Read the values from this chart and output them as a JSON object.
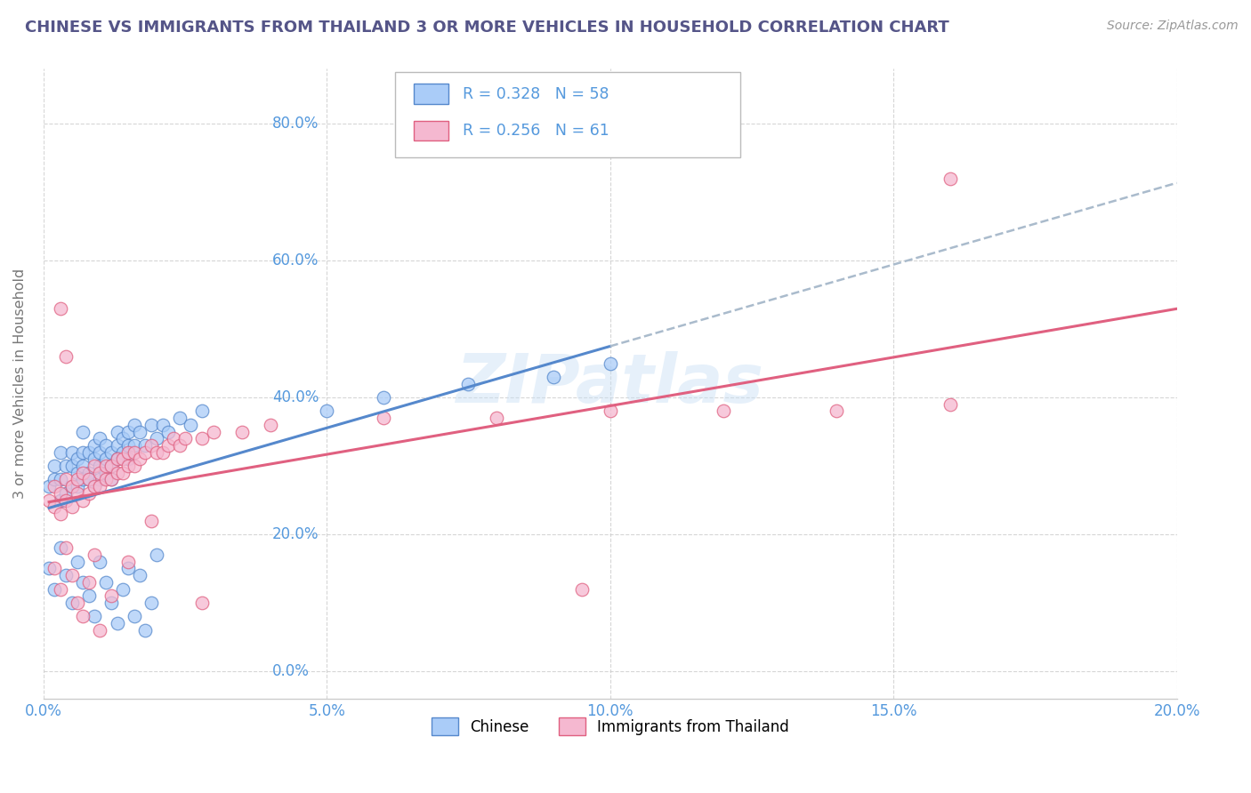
{
  "title": "CHINESE VS IMMIGRANTS FROM THAILAND 3 OR MORE VEHICLES IN HOUSEHOLD CORRELATION CHART",
  "source": "Source: ZipAtlas.com",
  "ylabel_label": "3 or more Vehicles in Household",
  "xlim": [
    0.0,
    0.2
  ],
  "ylim": [
    -0.04,
    0.88
  ],
  "legend_R": [
    0.328,
    0.256
  ],
  "legend_N": [
    58,
    61
  ],
  "color_chinese": "#aaccf8",
  "color_thailand": "#f5b8d0",
  "trendline_color_chinese": "#5588cc",
  "trendline_color_thailand": "#e06080",
  "watermark": "ZIPatlas",
  "title_color": "#555588",
  "tick_color": "#5599dd",
  "ylabel_color": "#777777",
  "chinese_x": [
    0.001,
    0.002,
    0.002,
    0.003,
    0.003,
    0.003,
    0.004,
    0.004,
    0.005,
    0.005,
    0.005,
    0.006,
    0.006,
    0.006,
    0.007,
    0.007,
    0.007,
    0.007,
    0.008,
    0.008,
    0.008,
    0.009,
    0.009,
    0.009,
    0.01,
    0.01,
    0.01,
    0.01,
    0.011,
    0.011,
    0.011,
    0.012,
    0.012,
    0.012,
    0.013,
    0.013,
    0.013,
    0.014,
    0.014,
    0.015,
    0.015,
    0.015,
    0.016,
    0.016,
    0.017,
    0.018,
    0.019,
    0.02,
    0.021,
    0.022,
    0.024,
    0.026,
    0.028,
    0.05,
    0.06,
    0.075,
    0.09,
    0.1
  ],
  "chinese_y": [
    0.27,
    0.3,
    0.28,
    0.32,
    0.28,
    0.25,
    0.3,
    0.26,
    0.3,
    0.27,
    0.32,
    0.29,
    0.31,
    0.27,
    0.32,
    0.28,
    0.3,
    0.35,
    0.29,
    0.32,
    0.28,
    0.31,
    0.27,
    0.33,
    0.3,
    0.28,
    0.32,
    0.34,
    0.31,
    0.29,
    0.33,
    0.3,
    0.32,
    0.28,
    0.33,
    0.31,
    0.35,
    0.32,
    0.34,
    0.31,
    0.33,
    0.35,
    0.33,
    0.36,
    0.35,
    0.33,
    0.36,
    0.34,
    0.36,
    0.35,
    0.37,
    0.36,
    0.38,
    0.38,
    0.4,
    0.42,
    0.43,
    0.45
  ],
  "chinese_low_y": [
    0.15,
    0.12,
    0.18,
    0.14,
    0.1,
    0.16,
    0.13,
    0.11,
    0.08,
    0.16,
    0.13,
    0.1,
    0.07,
    0.12,
    0.15,
    0.08,
    0.14,
    0.06,
    0.1,
    0.17
  ],
  "chinese_low_x": [
    0.001,
    0.002,
    0.003,
    0.004,
    0.005,
    0.006,
    0.007,
    0.008,
    0.009,
    0.01,
    0.011,
    0.012,
    0.013,
    0.014,
    0.015,
    0.016,
    0.017,
    0.018,
    0.019,
    0.02
  ],
  "thailand_x": [
    0.001,
    0.002,
    0.002,
    0.003,
    0.003,
    0.004,
    0.004,
    0.005,
    0.005,
    0.006,
    0.006,
    0.007,
    0.007,
    0.008,
    0.008,
    0.009,
    0.009,
    0.01,
    0.01,
    0.011,
    0.011,
    0.012,
    0.012,
    0.013,
    0.013,
    0.014,
    0.014,
    0.015,
    0.015,
    0.016,
    0.016,
    0.017,
    0.018,
    0.019,
    0.02,
    0.021,
    0.022,
    0.023,
    0.024,
    0.025,
    0.028,
    0.03,
    0.035,
    0.04,
    0.06,
    0.08,
    0.1,
    0.12,
    0.14,
    0.16,
    0.002,
    0.003,
    0.004,
    0.005,
    0.006,
    0.007,
    0.008,
    0.009,
    0.01,
    0.012,
    0.015
  ],
  "thailand_y": [
    0.25,
    0.24,
    0.27,
    0.23,
    0.26,
    0.25,
    0.28,
    0.24,
    0.27,
    0.26,
    0.28,
    0.25,
    0.29,
    0.26,
    0.28,
    0.27,
    0.3,
    0.27,
    0.29,
    0.28,
    0.3,
    0.28,
    0.3,
    0.29,
    0.31,
    0.29,
    0.31,
    0.3,
    0.32,
    0.3,
    0.32,
    0.31,
    0.32,
    0.33,
    0.32,
    0.32,
    0.33,
    0.34,
    0.33,
    0.34,
    0.34,
    0.35,
    0.35,
    0.36,
    0.37,
    0.37,
    0.38,
    0.38,
    0.38,
    0.39,
    0.15,
    0.12,
    0.18,
    0.14,
    0.1,
    0.08,
    0.13,
    0.17,
    0.06,
    0.11,
    0.16
  ],
  "thailand_special": {
    "x": [
      0.003,
      0.004,
      0.019,
      0.028,
      0.095
    ],
    "y": [
      0.53,
      0.46,
      0.22,
      0.1,
      0.12
    ]
  },
  "thailand_high": {
    "x": [
      0.16
    ],
    "y": [
      0.72
    ]
  }
}
